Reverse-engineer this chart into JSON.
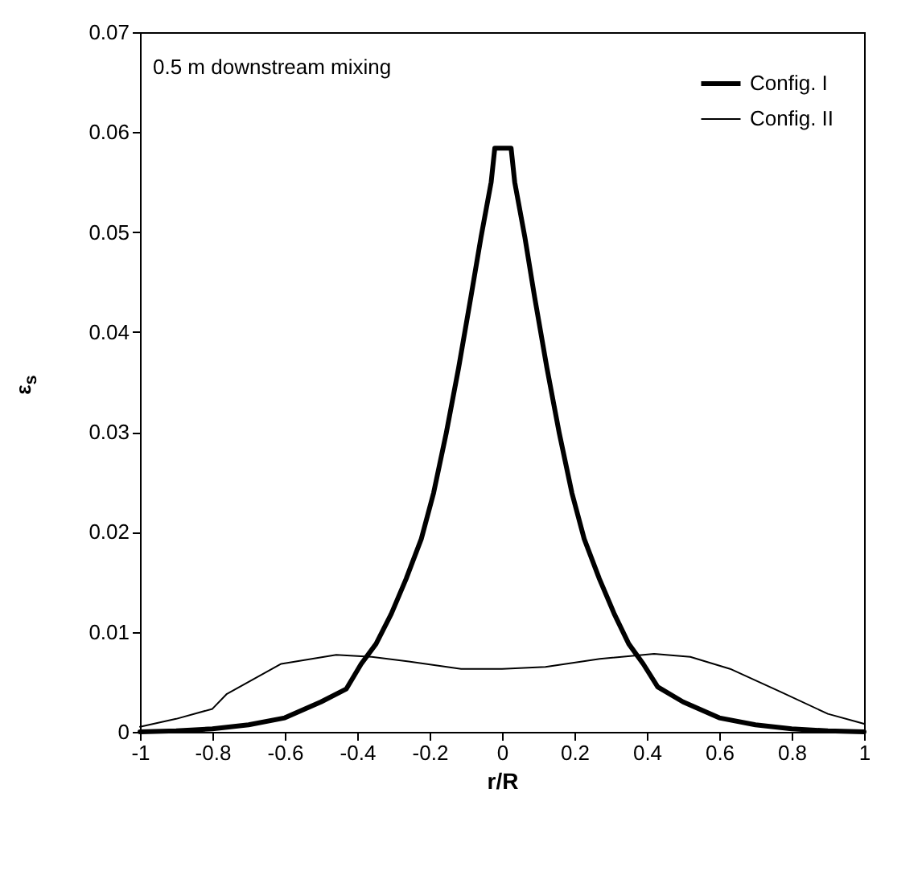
{
  "chart_data": {
    "type": "line",
    "xlabel": "r/R",
    "ylabel": "ε$_{s}$",
    "annotations": [
      "0.5 m downstream mixing"
    ],
    "xlim": [
      -1,
      1
    ],
    "xticks": [
      -1,
      -0.8,
      -0.6,
      -0.4,
      -0.2,
      0,
      0.2,
      0.4,
      0.6,
      0.8,
      1
    ],
    "ylim": [
      0,
      0.07
    ],
    "yticks": [
      0,
      0.01,
      0.02,
      0.03,
      0.04,
      0.05,
      0.06,
      0.07
    ],
    "legend": "top right",
    "grid": false,
    "series": [
      {
        "name": "Config. I",
        "color": "#000000",
        "x": [
          -1,
          -0.9,
          -0.8,
          -0.7,
          -0.6,
          -0.5,
          -0.43,
          -0.389,
          -0.348,
          -0.306,
          -0.265,
          -0.223,
          -0.189,
          -0.154,
          -0.12,
          -0.086,
          -0.058,
          -0.03,
          -0.02,
          0.025,
          0.035,
          0.063,
          0.09,
          0.124,
          0.158,
          0.193,
          0.227,
          0.269,
          0.31,
          0.35,
          0.39,
          0.43,
          0.5,
          0.6,
          0.7,
          0.8,
          0.9,
          1
        ],
        "values": [
          0,
          0.0001,
          0.0003,
          0.0007,
          0.0014,
          0.003,
          0.0043,
          0.0068,
          0.0088,
          0.0118,
          0.0153,
          0.0193,
          0.0239,
          0.0299,
          0.0364,
          0.0435,
          0.0495,
          0.055,
          0.0584,
          0.0584,
          0.055,
          0.0495,
          0.0435,
          0.0364,
          0.0299,
          0.0239,
          0.0193,
          0.0153,
          0.0118,
          0.0088,
          0.0068,
          0.0045,
          0.003,
          0.0014,
          0.0007,
          0.0003,
          0.0001,
          0
        ]
      },
      {
        "name": "Config. II",
        "color": "#000000",
        "x": [
          -1,
          -0.9,
          -0.8,
          -0.76,
          -0.61,
          -0.458,
          -0.36,
          -0.25,
          -0.113,
          0,
          0.12,
          0.27,
          0.42,
          0.52,
          0.63,
          0.77,
          0.9,
          0.98,
          1
        ],
        "values": [
          0.0005,
          0.0013,
          0.0023,
          0.0038,
          0.0068,
          0.0077,
          0.0075,
          0.007,
          0.0063,
          0.0063,
          0.0065,
          0.0073,
          0.0078,
          0.0075,
          0.0063,
          0.004,
          0.0018,
          0.001,
          0.0008
        ]
      }
    ]
  }
}
